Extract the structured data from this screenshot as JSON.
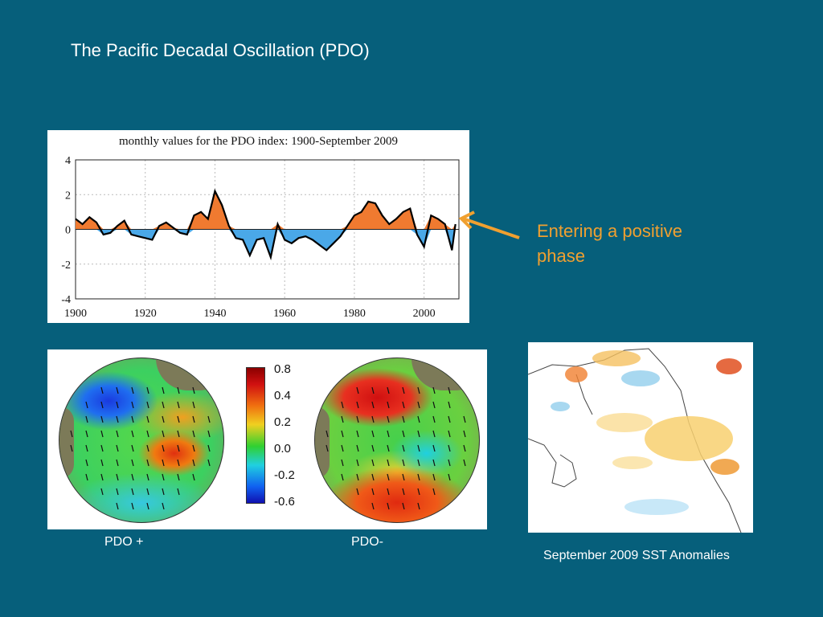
{
  "slide": {
    "title": "The Pacific Decadal Oscillation (PDO)",
    "callout": "Entering a positive phase"
  },
  "captions": {
    "pdo_plus": "PDO +",
    "pdo_minus": "PDO-",
    "sst": "September 2009 SST Anomalies"
  },
  "colorbar": {
    "ticks": [
      "0.8",
      "0.4",
      "0.2",
      "0.0",
      "-0.2",
      "-0.6"
    ]
  },
  "colors": {
    "background": "#065f7b",
    "callout": "#f0a030",
    "positive_fill": "#f07a30",
    "negative_fill": "#4aa8e8",
    "smoothed_line": "#000000"
  },
  "chart_data": {
    "type": "area",
    "title": "monthly values for the PDO index: 1900-September 2009",
    "xlabel": "",
    "ylabel": "",
    "xlim": [
      1900,
      2010
    ],
    "ylim": [
      -4,
      4
    ],
    "xticks": [
      1900,
      1920,
      1940,
      1960,
      1980,
      2000
    ],
    "yticks": [
      4,
      2,
      0,
      -2,
      -4
    ],
    "grid": true,
    "series": [
      {
        "x": [
          1900,
          1902,
          1904,
          1906,
          1908,
          1910,
          1912,
          1914,
          1916,
          1918,
          1920,
          1922,
          1924,
          1926,
          1928,
          1930,
          1932,
          1934,
          1936,
          1938,
          1940,
          1942,
          1944,
          1946,
          1948,
          1950,
          1952,
          1954,
          1956,
          1958,
          1960,
          1962,
          1964,
          1966,
          1968,
          1970,
          1972,
          1974,
          1976,
          1978,
          1980,
          1982,
          1984,
          1986,
          1988,
          1990,
          1992,
          1994,
          1996,
          1998,
          2000,
          2002,
          2004,
          2006,
          2008,
          2009
        ],
        "values": [
          0.6,
          0.3,
          0.7,
          0.4,
          -0.3,
          -0.2,
          0.2,
          0.5,
          -0.3,
          -0.4,
          -0.5,
          -0.6,
          0.2,
          0.4,
          0.1,
          -0.2,
          -0.3,
          0.8,
          1.0,
          0.6,
          2.2,
          1.4,
          0.2,
          -0.5,
          -0.6,
          -1.5,
          -0.6,
          -0.5,
          -1.6,
          0.3,
          -0.6,
          -0.8,
          -0.5,
          -0.4,
          -0.6,
          -0.9,
          -1.2,
          -0.8,
          -0.4,
          0.2,
          0.8,
          1.0,
          1.6,
          1.5,
          0.8,
          0.3,
          0.6,
          1.0,
          1.2,
          -0.3,
          -1.0,
          0.8,
          0.6,
          0.3,
          -1.2,
          0.3
        ]
      }
    ]
  }
}
